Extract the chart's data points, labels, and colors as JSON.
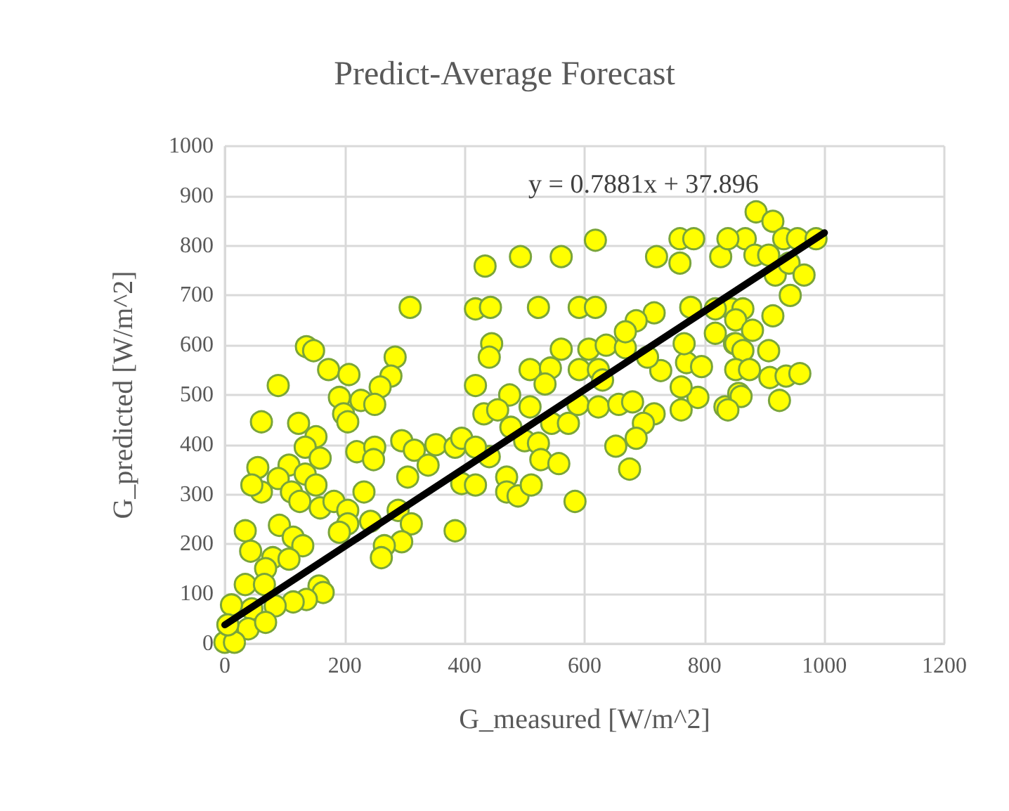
{
  "chart_data": {
    "type": "scatter",
    "title": "Predict-Average Forecast",
    "xlabel": "G_measured [W/m^2]",
    "ylabel": "G_predicted [W/m^2]",
    "annotations": [
      "y = 0.7881x + 37.896"
    ],
    "xlim": [
      0,
      1200
    ],
    "xticks": [
      0,
      200,
      400,
      600,
      800,
      1000,
      1200
    ],
    "ylim": [
      0,
      1000
    ],
    "yticks": [
      0,
      100,
      200,
      300,
      400,
      500,
      600,
      700,
      800,
      900,
      1000
    ],
    "grid": true,
    "marker": "circle",
    "series": [
      {
        "color": "#ffff00",
        "x": [
          136,
          148,
          173,
          207,
          89,
          284,
          277,
          259,
          191,
          227,
          250,
          198,
          205,
          61,
          123,
          152,
          134,
          159,
          55,
          107,
          89,
          134,
          152,
          61,
          45,
          111,
          125,
          159,
          220,
          250,
          248,
          295,
          316,
          305,
          339,
          352,
          384,
          395,
          395,
          232,
          182,
          205,
          205,
          191,
          243,
          289,
          311,
          295,
          266,
          261,
          384,
          34,
          43,
          91,
          114,
          130,
          80,
          107,
          68,
          34,
          66,
          157,
          164,
          136,
          114,
          84,
          45,
          11,
          39,
          68,
          0,
          16,
          5,
          445,
          441,
          561,
          607,
          636,
          668,
          509,
          543,
          591,
          623,
          418,
          534,
          475,
          509,
          432,
          455,
          545,
          573,
          589,
          623,
          657,
          680,
          716,
          698,
          686,
          652,
          675,
          584,
          477,
          500,
          523,
          527,
          557,
          441,
          418,
          418,
          470,
          470,
          489,
          511,
          761,
          789,
          761,
          770,
          795,
          766,
          818,
          850,
          834,
          857,
          727,
          705,
          630,
          886,
          914,
          868,
          932,
          955,
          986,
          884,
          907,
          918,
          941,
          966,
          943,
          845,
          864,
          914,
          852,
          880,
          852,
          864,
          907,
          852,
          875,
          909,
          936,
          959,
          861,
          925,
          839,
          618,
          434,
          493,
          561,
          309,
          418,
          443,
          523,
          591,
          618,
          720,
          759,
          782,
          759,
          827,
          839,
          716,
          686,
          668,
          777,
          818
        ],
        "values": [
          597,
          589,
          551,
          541,
          519,
          576,
          538,
          516,
          495,
          489,
          481,
          462,
          446,
          446,
          443,
          416,
          395,
          373,
          354,
          359,
          332,
          341,
          319,
          305,
          319,
          305,
          286,
          273,
          386,
          395,
          370,
          408,
          389,
          335,
          359,
          400,
          395,
          413,
          322,
          305,
          286,
          268,
          241,
          224,
          246,
          268,
          241,
          205,
          197,
          173,
          227,
          227,
          186,
          238,
          214,
          197,
          173,
          170,
          151,
          119,
          119,
          116,
          103,
          89,
          84,
          76,
          70,
          78,
          30,
          43,
          3,
          3,
          38,
          603,
          576,
          592,
          592,
          600,
          595,
          551,
          554,
          551,
          551,
          519,
          522,
          500,
          476,
          462,
          470,
          443,
          443,
          481,
          476,
          481,
          486,
          462,
          443,
          413,
          397,
          351,
          286,
          435,
          408,
          403,
          370,
          362,
          376,
          395,
          319,
          335,
          305,
          297,
          319,
          470,
          495,
          516,
          565,
          557,
          603,
          624,
          603,
          476,
          503,
          549,
          576,
          530,
          868,
          849,
          814,
          814,
          814,
          814,
          781,
          781,
          741,
          765,
          741,
          700,
          673,
          673,
          659,
          651,
          630,
          603,
          589,
          589,
          551,
          551,
          535,
          538,
          543,
          497,
          489,
          470,
          811,
          759,
          778,
          778,
          676,
          673,
          676,
          676,
          676,
          676,
          778,
          814,
          814,
          765,
          778,
          814,
          665,
          649,
          627,
          676,
          673
        ]
      },
      {
        "type": "line",
        "color": "#000000",
        "x": [
          0,
          1000
        ],
        "values": [
          38,
          826
        ],
        "marker": "none"
      }
    ]
  }
}
